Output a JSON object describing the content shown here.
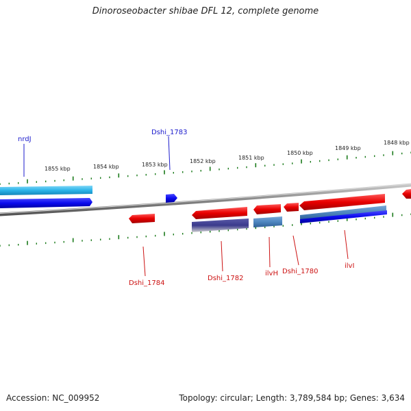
{
  "title": "Dinoroseobacter shibae DFL 12, complete genome",
  "footer": {
    "accession": "Accession: NC_009952",
    "genome_info": "Topology: circular; Length: 3,789,584 bp; Genes: 3,634"
  },
  "scale": {
    "labels": [
      "1855 kbp",
      "1854 kbp",
      "1853 kbp",
      "1852 kbp",
      "1851 kbp",
      "1850 kbp",
      "1849 kbp",
      "1848 kbp"
    ]
  },
  "genes": [
    {
      "id": "nrdJ",
      "label": "nrdJ",
      "color": "#1a1acc"
    },
    {
      "id": "Dshi_1783",
      "label": "Dshi_1783",
      "color": "#1a1acc"
    },
    {
      "id": "Dshi_1784",
      "label": "Dshi_1784",
      "color": "#cc1111"
    },
    {
      "id": "Dshi_1782",
      "label": "Dshi_1782",
      "color": "#cc1111"
    },
    {
      "id": "ilvH",
      "label": "ilvH",
      "color": "#cc1111"
    },
    {
      "id": "Dshi_1780",
      "label": "Dshi_1780",
      "color": "#cc1111"
    },
    {
      "id": "ilvI",
      "label": "ilvI",
      "color": "#cc1111"
    }
  ],
  "colors": {
    "forward_gene": "#0a0aff",
    "forward_cds": "#2ab3e8",
    "reverse_gene": "#e80000",
    "reverse_cds_dark": "#3a3a8c",
    "reverse_cds_blue": "#4d86c0",
    "backbone": "#8a8a8a",
    "tick": "#1a7a1a"
  }
}
